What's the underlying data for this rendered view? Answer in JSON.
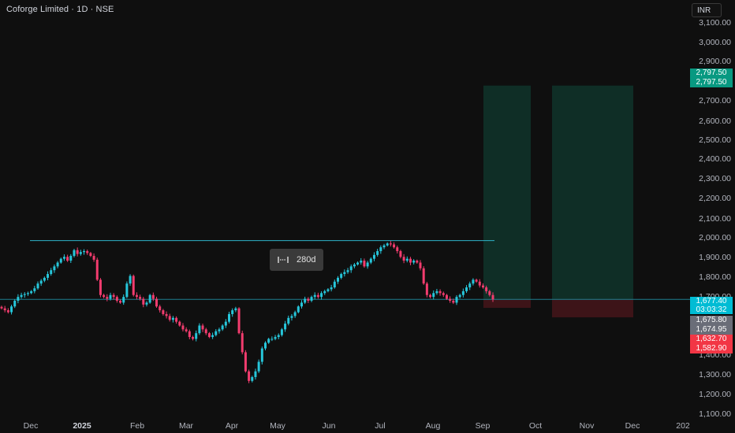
{
  "header": {
    "title": "Coforge Limited · 1D · NSE",
    "currency_button": "INR"
  },
  "measure_tool": {
    "label": "280d",
    "icon": "range-icon"
  },
  "y_axis": {
    "ticks": [
      "3,100.00",
      "3,000.00",
      "2,900.00",
      "2,700.00",
      "2,600.00",
      "2,500.00",
      "2,400.00",
      "2,300.00",
      "2,200.00",
      "2,100.00",
      "2,000.00",
      "1,900.00",
      "1,800.00",
      "1,700.00",
      "1,400.00",
      "1,300.00",
      "1,200.00",
      "1,100.00"
    ]
  },
  "x_axis": {
    "labels": [
      "Dec",
      "2025",
      "Feb",
      "Mar",
      "Apr",
      "May",
      "Jun",
      "Jul",
      "Aug",
      "Sep",
      "Oct",
      "Nov",
      "Dec",
      "202"
    ]
  },
  "price_tags": {
    "target_a": "2,797.50",
    "target_b": "2,797.50",
    "last_price": "1,677.40",
    "countdown": "03:03:32",
    "grey_a": "1,675.80",
    "grey_b": "1,674.95",
    "stop_a": "1,632.70",
    "stop_b": "1,582.90"
  },
  "colors": {
    "background": "#0f0f0f",
    "up": "#26c6da",
    "down": "#f23c6e",
    "target_zone": "#0f2e26",
    "stop_zone": "#3d1418",
    "target_tag": "#089981",
    "stop_tag": "#f23645",
    "last_tag": "#00bcd4",
    "grey_tag": "#6a6d78"
  },
  "chart_data": {
    "type": "candlestick",
    "symbol": "Coforge Limited",
    "interval": "1D",
    "exchange": "NSE",
    "currency": "INR",
    "ylim": [
      1100,
      3150
    ],
    "resistance_level": 1985,
    "last_price": 1677.4,
    "x_labels": [
      "Dec",
      "2025",
      "Feb",
      "Mar",
      "Apr",
      "May",
      "Jun",
      "Jul",
      "Aug",
      "Sep",
      "Oct",
      "Nov",
      "Dec",
      "202"
    ],
    "closes": [
      1630,
      1620,
      1610,
      1640,
      1670,
      1690,
      1700,
      1705,
      1710,
      1720,
      1735,
      1760,
      1775,
      1790,
      1810,
      1830,
      1850,
      1870,
      1890,
      1900,
      1880,
      1905,
      1935,
      1915,
      1925,
      1930,
      1920,
      1905,
      1885,
      1780,
      1700,
      1690,
      1680,
      1700,
      1690,
      1670,
      1660,
      1690,
      1760,
      1800,
      1700,
      1690,
      1680,
      1650,
      1660,
      1700,
      1680,
      1640,
      1620,
      1600,
      1590,
      1570,
      1580,
      1560,
      1540,
      1520,
      1510,
      1480,
      1470,
      1500,
      1540,
      1520,
      1500,
      1480,
      1490,
      1510,
      1520,
      1540,
      1560,
      1600,
      1620,
      1630,
      1500,
      1400,
      1300,
      1250,
      1270,
      1300,
      1350,
      1420,
      1450,
      1470,
      1470,
      1480,
      1490,
      1520,
      1550,
      1580,
      1590,
      1610,
      1640,
      1660,
      1680,
      1670,
      1690,
      1700,
      1690,
      1710,
      1720,
      1730,
      1740,
      1770,
      1790,
      1810,
      1820,
      1830,
      1850,
      1860,
      1870,
      1880,
      1850,
      1870,
      1890,
      1910,
      1930,
      1950,
      1960,
      1970,
      1965,
      1950,
      1930,
      1900,
      1880,
      1890,
      1870,
      1880,
      1870,
      1840,
      1760,
      1700,
      1690,
      1710,
      1720,
      1710,
      1700,
      1680,
      1670,
      1660,
      1690,
      1700,
      1720,
      1740,
      1760,
      1780,
      1770,
      1750,
      1740,
      1720,
      1700,
      1677
    ]
  }
}
